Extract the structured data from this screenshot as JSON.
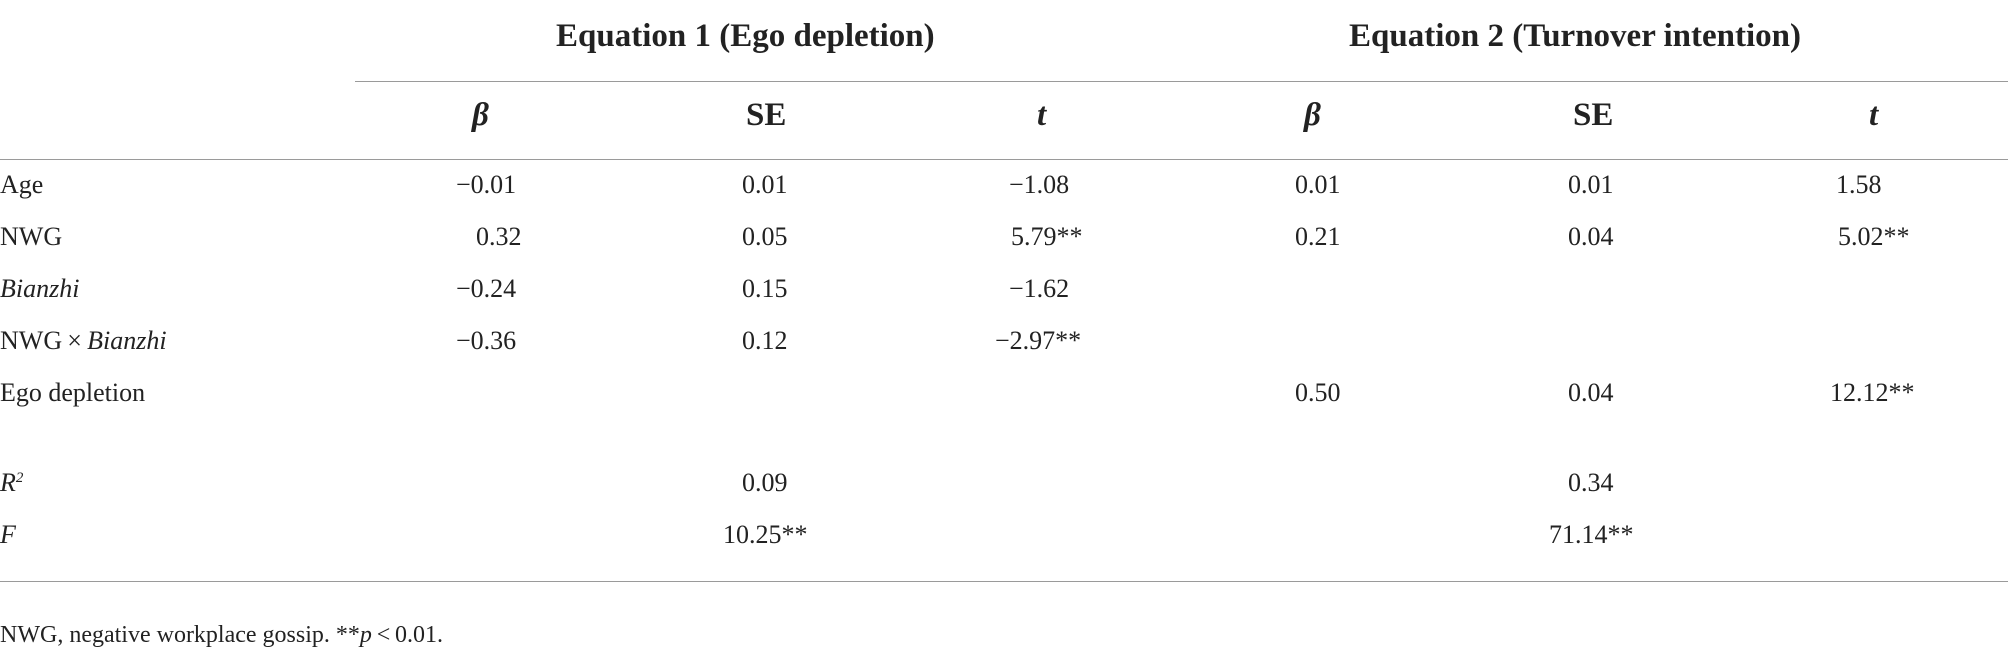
{
  "header": {
    "group1": "Equation 1 (Ego depletion)",
    "group2": "Equation 2 (Turnover intention)",
    "col_beta": "β",
    "col_se": "SE",
    "col_t": "t"
  },
  "rows": [
    {
      "label": "Age",
      "eq1_beta": "−0.01",
      "eq1_se": "0.01",
      "eq1_t": "−1.08",
      "eq2_beta": "0.01",
      "eq2_se": "0.01",
      "eq2_t": "1.58"
    },
    {
      "label": "NWG",
      "eq1_beta": "0.32",
      "eq1_se": "0.05",
      "eq1_t": "5.79**",
      "eq2_beta": "0.21",
      "eq2_se": "0.04",
      "eq2_t": "5.02**"
    },
    {
      "label": "Bianzhi",
      "eq1_beta": "−0.24",
      "eq1_se": "0.15",
      "eq1_t": "−1.62",
      "eq2_beta": "",
      "eq2_se": "",
      "eq2_t": ""
    },
    {
      "label_prefix": "NWG × ",
      "label_italic": "Bianzhi",
      "eq1_beta": "−0.36",
      "eq1_se": "0.12",
      "eq1_t": "−2.97**",
      "eq2_beta": "",
      "eq2_se": "",
      "eq2_t": ""
    },
    {
      "label": "Ego depletion",
      "eq1_beta": "",
      "eq1_se": "",
      "eq1_t": "",
      "eq2_beta": "0.50",
      "eq2_se": "0.04",
      "eq2_t": "12.12**"
    }
  ],
  "stats": {
    "r2_label": "R",
    "r2_sup": "2",
    "r2_eq1": "0.09",
    "r2_eq2": "0.34",
    "f_label": "F",
    "f_eq1": "10.25**",
    "f_eq2": "71.14**"
  },
  "footnote": {
    "text": "NWG, negative workplace gossip. **",
    "p": "p",
    "tail": " < 0.01."
  }
}
